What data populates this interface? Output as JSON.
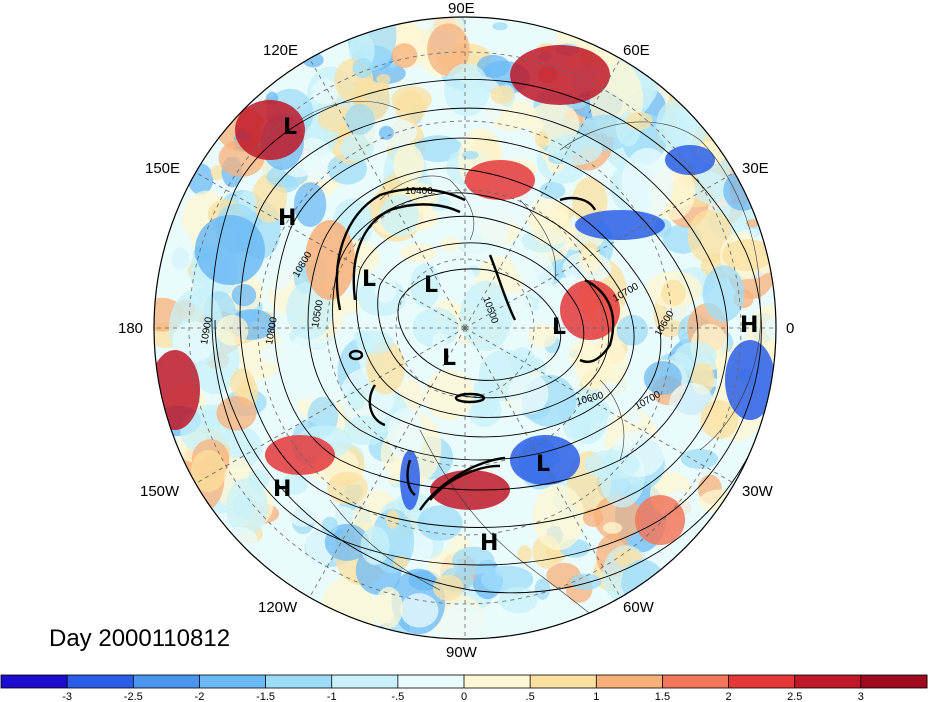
{
  "timestamp_label": "Day 2000110812",
  "longitude_labels": [
    {
      "label": "90E",
      "deg": 90
    },
    {
      "label": "60E",
      "deg": 60
    },
    {
      "label": "30E",
      "deg": 30
    },
    {
      "label": "0",
      "deg": 0
    },
    {
      "label": "30W",
      "deg": -30
    },
    {
      "label": "60W",
      "deg": -60
    },
    {
      "label": "90W",
      "deg": -90
    },
    {
      "label": "120W",
      "deg": -120
    },
    {
      "label": "150W",
      "deg": -150
    },
    {
      "label": "180",
      "deg": 180
    },
    {
      "label": "150E",
      "deg": 150
    },
    {
      "label": "120E",
      "deg": 120
    }
  ],
  "pressure_centers": [
    {
      "type": "L",
      "name": "low-120e"
    },
    {
      "type": "H",
      "name": "high-150e"
    },
    {
      "type": "L",
      "name": "low-siberia-west"
    },
    {
      "type": "L",
      "name": "low-siberia-east"
    },
    {
      "type": "L",
      "name": "low-pole"
    },
    {
      "type": "L",
      "name": "low-scandinavia"
    },
    {
      "type": "H",
      "name": "high-0"
    },
    {
      "type": "L",
      "name": "low-labrador"
    },
    {
      "type": "H",
      "name": "high-150w"
    },
    {
      "type": "H",
      "name": "high-atlantic"
    }
  ],
  "contour_labels": [
    "10400",
    "10800",
    "10800",
    "10900",
    "10500",
    "10700",
    "10600",
    "10600",
    "10700",
    "10500"
  ],
  "colorbar": {
    "ticks": [
      "-3",
      "-2.5",
      "-2",
      "-1.5",
      "-1",
      "-.5",
      "0",
      ".5",
      "1",
      "1.5",
      "2",
      "2.5",
      "3"
    ],
    "colors": [
      "#1c0ccf",
      "#2a5ee8",
      "#4b95f0",
      "#6cbaf5",
      "#9ddcf8",
      "#c8f1fa",
      "#eafbfc",
      "#fdf7d3",
      "#fbe0a0",
      "#f8b07a",
      "#f2775a",
      "#e4373a",
      "#c01828",
      "#a00a1e"
    ]
  }
}
